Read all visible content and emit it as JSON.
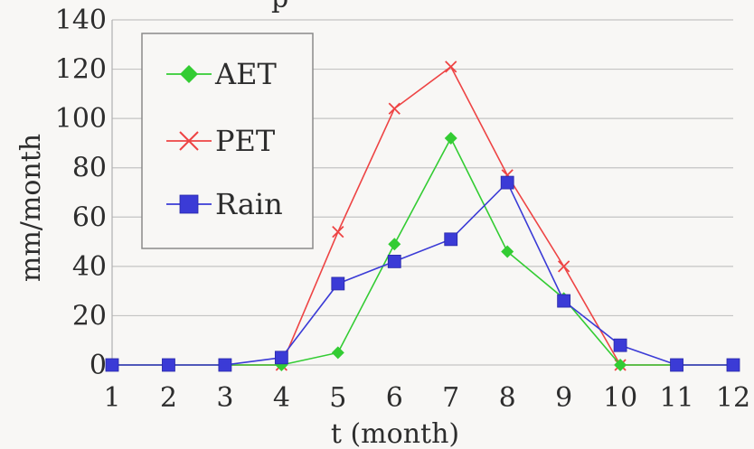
{
  "chart_data": {
    "type": "line",
    "title_fragment": "p",
    "xlabel": "t (month)",
    "ylabel": "mm/month",
    "x": [
      1,
      2,
      3,
      4,
      5,
      6,
      7,
      8,
      9,
      10,
      11,
      12
    ],
    "xlim": [
      1,
      12
    ],
    "ylim": [
      0,
      140
    ],
    "y_ticks": [
      0,
      20,
      40,
      60,
      80,
      100,
      120,
      140
    ],
    "grid": true,
    "legend_position": "top-left",
    "series": [
      {
        "name": "AET",
        "color": "#33cc33",
        "marker": "diamond",
        "values": [
          0,
          0,
          0,
          0,
          5,
          49,
          92,
          46,
          27,
          0,
          0,
          0
        ]
      },
      {
        "name": "PET",
        "color": "#ee4444",
        "marker": "cross",
        "values": [
          0,
          0,
          0,
          0,
          54,
          104,
          121,
          77,
          40,
          0,
          0,
          0
        ]
      },
      {
        "name": "Rain",
        "color": "#3b3bd6",
        "marker": "square",
        "values": [
          0,
          0,
          0,
          3,
          33,
          42,
          51,
          74,
          26,
          8,
          0,
          0
        ]
      }
    ]
  }
}
